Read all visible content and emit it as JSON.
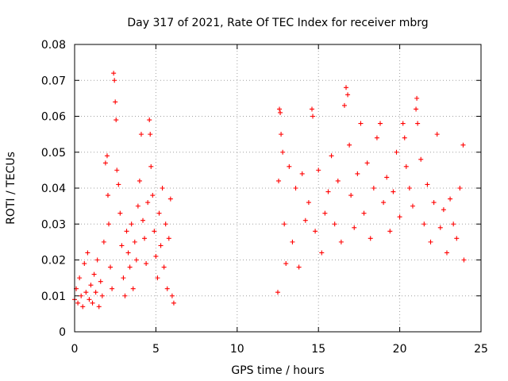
{
  "chart_data": {
    "type": "scatter",
    "title": "Day 317 of 2021, Rate Of TEC Index for receiver mbrg",
    "xlabel": "GPS time / hours",
    "ylabel": "ROTI / TECUs",
    "xlim": [
      0,
      25
    ],
    "ylim": [
      0,
      0.08
    ],
    "x_ticks": [
      "0",
      "5",
      "10",
      "15",
      "20",
      "25"
    ],
    "y_ticks": [
      "0",
      "0.01",
      "0.02",
      "0.03",
      "0.04",
      "0.05",
      "0.06",
      "0.07",
      "0.08"
    ],
    "grid": true,
    "marker": "+",
    "color": "#ff0000",
    "series": [
      {
        "name": "",
        "points": [
          [
            0.0,
            0.009
          ],
          [
            0.1,
            0.012
          ],
          [
            0.2,
            0.008
          ],
          [
            0.3,
            0.015
          ],
          [
            0.4,
            0.01
          ],
          [
            0.5,
            0.007
          ],
          [
            0.6,
            0.019
          ],
          [
            0.7,
            0.011
          ],
          [
            0.8,
            0.022
          ],
          [
            0.9,
            0.009
          ],
          [
            1.0,
            0.013
          ],
          [
            1.1,
            0.008
          ],
          [
            1.2,
            0.016
          ],
          [
            1.3,
            0.011
          ],
          [
            1.4,
            0.02
          ],
          [
            1.5,
            0.007
          ],
          [
            1.6,
            0.014
          ],
          [
            1.7,
            0.01
          ],
          [
            1.8,
            0.025
          ],
          [
            1.9,
            0.047
          ],
          [
            2.0,
            0.049
          ],
          [
            2.05,
            0.038
          ],
          [
            2.1,
            0.03
          ],
          [
            2.2,
            0.018
          ],
          [
            2.3,
            0.012
          ],
          [
            2.4,
            0.072
          ],
          [
            2.45,
            0.07
          ],
          [
            2.5,
            0.064
          ],
          [
            2.55,
            0.059
          ],
          [
            2.6,
            0.045
          ],
          [
            2.7,
            0.041
          ],
          [
            2.8,
            0.033
          ],
          [
            2.9,
            0.024
          ],
          [
            3.0,
            0.015
          ],
          [
            3.1,
            0.01
          ],
          [
            3.2,
            0.028
          ],
          [
            3.3,
            0.022
          ],
          [
            3.4,
            0.018
          ],
          [
            3.5,
            0.03
          ],
          [
            3.6,
            0.012
          ],
          [
            3.7,
            0.025
          ],
          [
            3.8,
            0.02
          ],
          [
            3.9,
            0.035
          ],
          [
            4.0,
            0.042
          ],
          [
            4.1,
            0.055
          ],
          [
            4.2,
            0.031
          ],
          [
            4.3,
            0.026
          ],
          [
            4.4,
            0.019
          ],
          [
            4.5,
            0.036
          ],
          [
            4.6,
            0.059
          ],
          [
            4.65,
            0.055
          ],
          [
            4.7,
            0.046
          ],
          [
            4.8,
            0.038
          ],
          [
            4.9,
            0.028
          ],
          [
            5.0,
            0.021
          ],
          [
            5.1,
            0.015
          ],
          [
            5.2,
            0.033
          ],
          [
            5.3,
            0.024
          ],
          [
            5.4,
            0.04
          ],
          [
            5.5,
            0.018
          ],
          [
            5.6,
            0.03
          ],
          [
            5.7,
            0.012
          ],
          [
            5.8,
            0.026
          ],
          [
            5.9,
            0.037
          ],
          [
            6.0,
            0.01
          ],
          [
            6.1,
            0.008
          ],
          [
            12.5,
            0.011
          ],
          [
            12.55,
            0.042
          ],
          [
            12.6,
            0.062
          ],
          [
            12.65,
            0.061
          ],
          [
            12.7,
            0.055
          ],
          [
            12.8,
            0.05
          ],
          [
            12.9,
            0.03
          ],
          [
            13.0,
            0.019
          ],
          [
            13.2,
            0.046
          ],
          [
            13.4,
            0.025
          ],
          [
            13.6,
            0.04
          ],
          [
            13.8,
            0.018
          ],
          [
            14.0,
            0.044
          ],
          [
            14.2,
            0.031
          ],
          [
            14.4,
            0.036
          ],
          [
            14.6,
            0.062
          ],
          [
            14.65,
            0.06
          ],
          [
            14.8,
            0.028
          ],
          [
            15.0,
            0.045
          ],
          [
            15.2,
            0.022
          ],
          [
            15.4,
            0.033
          ],
          [
            15.6,
            0.039
          ],
          [
            15.8,
            0.049
          ],
          [
            16.0,
            0.03
          ],
          [
            16.2,
            0.042
          ],
          [
            16.4,
            0.025
          ],
          [
            16.6,
            0.063
          ],
          [
            16.7,
            0.068
          ],
          [
            16.8,
            0.066
          ],
          [
            16.9,
            0.052
          ],
          [
            17.0,
            0.038
          ],
          [
            17.2,
            0.029
          ],
          [
            17.4,
            0.044
          ],
          [
            17.6,
            0.058
          ],
          [
            17.8,
            0.033
          ],
          [
            18.0,
            0.047
          ],
          [
            18.2,
            0.026
          ],
          [
            18.4,
            0.04
          ],
          [
            18.6,
            0.054
          ],
          [
            18.8,
            0.058
          ],
          [
            19.0,
            0.036
          ],
          [
            19.2,
            0.043
          ],
          [
            19.4,
            0.028
          ],
          [
            19.6,
            0.039
          ],
          [
            19.8,
            0.05
          ],
          [
            20.0,
            0.032
          ],
          [
            20.2,
            0.058
          ],
          [
            20.3,
            0.054
          ],
          [
            20.4,
            0.046
          ],
          [
            20.6,
            0.04
          ],
          [
            20.8,
            0.035
          ],
          [
            21.0,
            0.062
          ],
          [
            21.05,
            0.065
          ],
          [
            21.1,
            0.058
          ],
          [
            21.3,
            0.048
          ],
          [
            21.5,
            0.03
          ],
          [
            21.7,
            0.041
          ],
          [
            21.9,
            0.025
          ],
          [
            22.1,
            0.036
          ],
          [
            22.3,
            0.055
          ],
          [
            22.5,
            0.029
          ],
          [
            22.7,
            0.034
          ],
          [
            22.9,
            0.022
          ],
          [
            23.1,
            0.037
          ],
          [
            23.3,
            0.03
          ],
          [
            23.5,
            0.026
          ],
          [
            23.7,
            0.04
          ],
          [
            23.9,
            0.052
          ],
          [
            23.95,
            0.02
          ]
        ]
      }
    ]
  }
}
